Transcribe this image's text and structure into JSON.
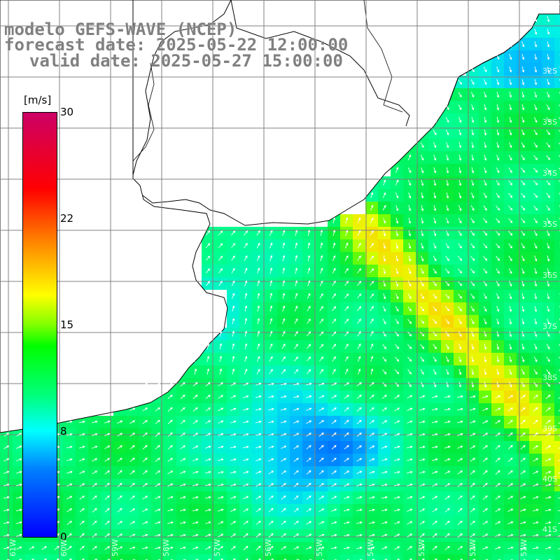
{
  "title": {
    "line1": "modelo GEFS-WAVE (NCEP)",
    "line2": "forecast date: 2025-05-22 12:00:00",
    "line3": "valid date: 2025-05-27 15:00:00"
  },
  "colorbar": {
    "unit": "[m/s]",
    "min": 0,
    "max": 30,
    "ticks": [
      "30",
      "22",
      "15",
      "8",
      "0"
    ],
    "colors": [
      "#0000ff",
      "#0080ff",
      "#00ffff",
      "#00ff80",
      "#00ff00",
      "#80ff00",
      "#ffff00",
      "#ff8000",
      "#ff0000",
      "#cc0066"
    ]
  },
  "map": {
    "variable": "wind speed",
    "land_color": "#ffffff",
    "grid_color": "#808080",
    "arrow_color": "#ffffff",
    "lat_labels": [
      "32S",
      "33S",
      "34S",
      "35S",
      "36S",
      "37S",
      "38S",
      "39S",
      "40S",
      "41S"
    ],
    "lon_labels": [
      "61W",
      "60W",
      "59W",
      "58W",
      "57W",
      "56W",
      "55W",
      "54W",
      "53W",
      "52W",
      "51W"
    ]
  }
}
